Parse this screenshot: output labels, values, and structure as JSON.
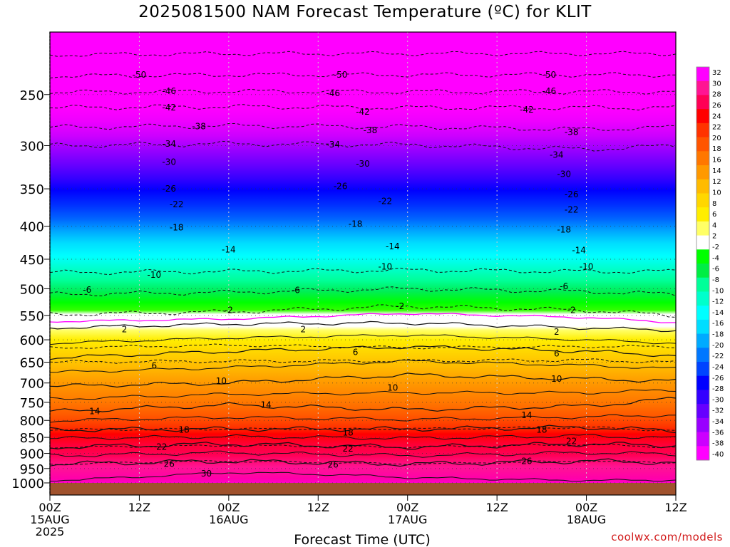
{
  "title": "2025081500 NAM Forecast Temperature (ºC) for KLIT",
  "credit": "coolwx.com/models",
  "chart_data": {
    "type": "heatmap",
    "title": "2025081500 NAM Forecast Temperature (ºC) for KLIT",
    "xlabel": "Forecast Time (UTC)",
    "ylabel": "",
    "x_ticks": [
      {
        "hour": 0,
        "l1": "00Z",
        "l2": "15AUG",
        "l3": "2025"
      },
      {
        "hour": 12,
        "l1": "12Z",
        "l2": "",
        "l3": ""
      },
      {
        "hour": 24,
        "l1": "00Z",
        "l2": "16AUG",
        "l3": ""
      },
      {
        "hour": 36,
        "l1": "12Z",
        "l2": "",
        "l3": ""
      },
      {
        "hour": 48,
        "l1": "00Z",
        "l2": "17AUG",
        "l3": ""
      },
      {
        "hour": 60,
        "l1": "12Z",
        "l2": "",
        "l3": ""
      },
      {
        "hour": 72,
        "l1": "00Z",
        "l2": "18AUG",
        "l3": ""
      },
      {
        "hour": 84,
        "l1": "12Z",
        "l2": "",
        "l3": ""
      }
    ],
    "xlim_hours": [
      0,
      84
    ],
    "y_ticks_hpa": [
      250,
      300,
      350,
      400,
      450,
      500,
      550,
      600,
      650,
      700,
      750,
      800,
      850,
      900,
      950,
      1000
    ],
    "ylim_hpa": [
      200,
      1000
    ],
    "y_scale": "log-pressure",
    "colorbar_ticks": [
      32,
      30,
      28,
      26,
      24,
      22,
      20,
      18,
      16,
      14,
      12,
      10,
      8,
      6,
      4,
      2,
      -2,
      -4,
      -6,
      -8,
      -10,
      -12,
      -14,
      -16,
      -18,
      -20,
      -22,
      -24,
      -26,
      -28,
      -30,
      -32,
      -34,
      -36,
      -38,
      -40
    ],
    "colorbar_colors": [
      "#ff00ff",
      "#ff1493",
      "#ff0055",
      "#ff0000",
      "#ff3300",
      "#ff5500",
      "#ff7700",
      "#ff9900",
      "#ffbb00",
      "#ffd700",
      "#ffee00",
      "#ffff66",
      "#ffffff",
      "#00ff00",
      "#00ee44",
      "#00ff99",
      "#00ffcc",
      "#00ffff",
      "#00ddff",
      "#00aaff",
      "#0077ff",
      "#0044ff",
      "#0000ff",
      "#3300ff",
      "#6600ff",
      "#9900ff",
      "#cc00ff",
      "#ff00ff"
    ],
    "freezing_line_color": "#ff00ff",
    "terrain_color": "#a0522d",
    "isotherm_profile": [
      {
        "hour": 0,
        "hpa": {
          "50": 234,
          "42": 262,
          "34": 300,
          "26": 935,
          "18": 827,
          "10": 472,
          "2": 548,
          "-2": 575,
          "6": 640,
          "10w": 708,
          "14": 775,
          "22": 880,
          "30": 985
        }
      },
      {
        "hour": 24,
        "hpa": {
          "50": 233,
          "42": 261,
          "34": 298,
          "26": 925,
          "18": 825,
          "10": 470,
          "2": 543,
          "-2": 567,
          "6": 625,
          "10w": 700,
          "14": 757,
          "22": 870,
          "30": 966
        }
      },
      {
        "hour": 48,
        "hpa": {
          "50": 233,
          "42": 262,
          "34": 299,
          "26": 935,
          "18": 825,
          "10": 468,
          "2": 532,
          "-2": 565,
          "6": 615,
          "10w": 680,
          "14": 770,
          "22": 880,
          "30": 985
        }
      },
      {
        "hour": 72,
        "hpa": {
          "50": 233,
          "42": 262,
          "34": 304,
          "26": 925,
          "18": 820,
          "10": 470,
          "2": 540,
          "-2": 575,
          "6": 625,
          "10w": 690,
          "14": 760,
          "22": 870,
          "30": 985
        }
      },
      {
        "hour": 84,
        "hpa": {
          "50": 233,
          "42": 262,
          "34": 300,
          "26": 930,
          "18": 830,
          "10": 470,
          "2": 550,
          "-2": 580,
          "6": 635,
          "10w": 695,
          "14": 740,
          "22": 875,
          "30": 985
        }
      }
    ],
    "contour_labels": [
      {
        "text": "-50",
        "hour": 12,
        "hpa": 233
      },
      {
        "text": "-50",
        "hour": 39,
        "hpa": 233
      },
      {
        "text": "-50",
        "hour": 67,
        "hpa": 233
      },
      {
        "text": "-46",
        "hour": 16,
        "hpa": 247
      },
      {
        "text": "-46",
        "hour": 38,
        "hpa": 249
      },
      {
        "text": "-46",
        "hour": 67,
        "hpa": 247
      },
      {
        "text": "-42",
        "hour": 16,
        "hpa": 262
      },
      {
        "text": "-42",
        "hour": 42,
        "hpa": 266
      },
      {
        "text": "-42",
        "hour": 64,
        "hpa": 264
      },
      {
        "text": "-38",
        "hour": 20,
        "hpa": 280
      },
      {
        "text": "-38",
        "hour": 43,
        "hpa": 284
      },
      {
        "text": "-38",
        "hour": 70,
        "hpa": 286
      },
      {
        "text": "-34",
        "hour": 16,
        "hpa": 298
      },
      {
        "text": "-34",
        "hour": 38,
        "hpa": 299
      },
      {
        "text": "-34",
        "hour": 68,
        "hpa": 310
      },
      {
        "text": "-30",
        "hour": 16,
        "hpa": 318
      },
      {
        "text": "-30",
        "hour": 42,
        "hpa": 320
      },
      {
        "text": "-30",
        "hour": 69,
        "hpa": 332
      },
      {
        "text": "-26",
        "hour": 16,
        "hpa": 350
      },
      {
        "text": "-26",
        "hour": 39,
        "hpa": 347
      },
      {
        "text": "-26",
        "hour": 70,
        "hpa": 357
      },
      {
        "text": "-22",
        "hour": 17,
        "hpa": 370
      },
      {
        "text": "-22",
        "hour": 45,
        "hpa": 366
      },
      {
        "text": "-22",
        "hour": 70,
        "hpa": 377
      },
      {
        "text": "-18",
        "hour": 17,
        "hpa": 402
      },
      {
        "text": "-18",
        "hour": 41,
        "hpa": 397
      },
      {
        "text": "-18",
        "hour": 69,
        "hpa": 405
      },
      {
        "text": "-14",
        "hour": 24,
        "hpa": 435
      },
      {
        "text": "-14",
        "hour": 46,
        "hpa": 430
      },
      {
        "text": "-14",
        "hour": 71,
        "hpa": 436
      },
      {
        "text": "-10",
        "hour": 14,
        "hpa": 476
      },
      {
        "text": "-10",
        "hour": 45,
        "hpa": 462
      },
      {
        "text": "-10",
        "hour": 72,
        "hpa": 462
      },
      {
        "text": "-6",
        "hour": 5,
        "hpa": 502
      },
      {
        "text": "-6",
        "hour": 33,
        "hpa": 503
      },
      {
        "text": "-6",
        "hour": 69,
        "hpa": 496
      },
      {
        "text": "-2",
        "hour": 24,
        "hpa": 540
      },
      {
        "text": "-2",
        "hour": 47,
        "hpa": 532
      },
      {
        "text": "-2",
        "hour": 70,
        "hpa": 540
      },
      {
        "text": "2",
        "hour": 10,
        "hpa": 578
      },
      {
        "text": "2",
        "hour": 34,
        "hpa": 578
      },
      {
        "text": "2",
        "hour": 68,
        "hpa": 583
      },
      {
        "text": "6",
        "hour": 14,
        "hpa": 658
      },
      {
        "text": "6",
        "hour": 41,
        "hpa": 627
      },
      {
        "text": "6",
        "hour": 68,
        "hpa": 630
      },
      {
        "text": "10",
        "hour": 23,
        "hpa": 695
      },
      {
        "text": "10",
        "hour": 46,
        "hpa": 712
      },
      {
        "text": "10",
        "hour": 68,
        "hpa": 690
      },
      {
        "text": "14",
        "hour": 6,
        "hpa": 775
      },
      {
        "text": "14",
        "hour": 29,
        "hpa": 757
      },
      {
        "text": "14",
        "hour": 64,
        "hpa": 785
      },
      {
        "text": "18",
        "hour": 18,
        "hpa": 827
      },
      {
        "text": "18",
        "hour": 40,
        "hpa": 836
      },
      {
        "text": "18",
        "hour": 66,
        "hpa": 827
      },
      {
        "text": "22",
        "hour": 15,
        "hpa": 880
      },
      {
        "text": "22",
        "hour": 40,
        "hpa": 885
      },
      {
        "text": "22",
        "hour": 70,
        "hpa": 862
      },
      {
        "text": "26",
        "hour": 16,
        "hpa": 935
      },
      {
        "text": "26",
        "hour": 38,
        "hpa": 937
      },
      {
        "text": "26",
        "hour": 64,
        "hpa": 925
      },
      {
        "text": "30",
        "hour": 21,
        "hpa": 967
      }
    ]
  }
}
